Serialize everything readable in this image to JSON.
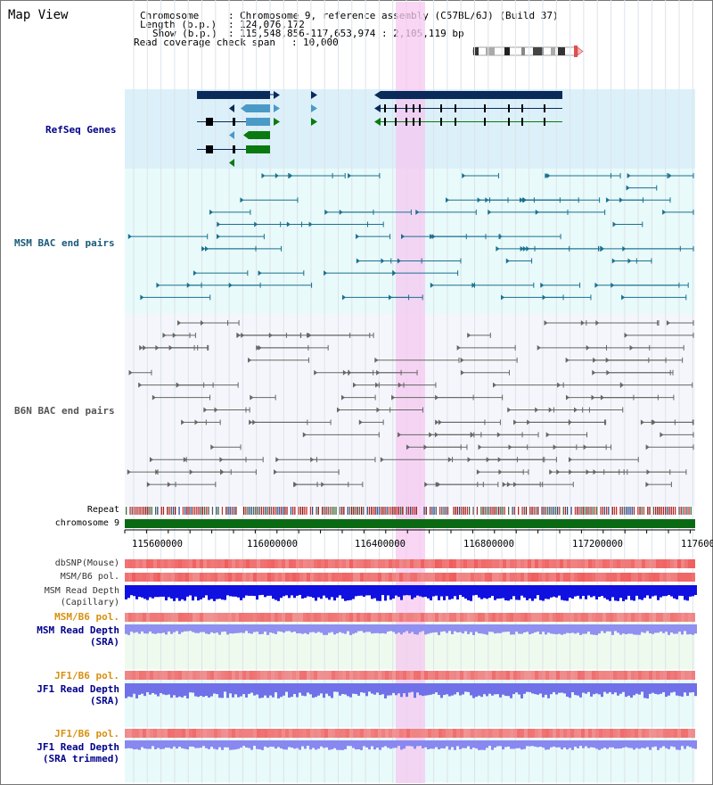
{
  "page": {
    "title": "Map View"
  },
  "header": {
    "chromosome_label": "Chromosome",
    "chromosome_value": "Chromosome 9, reference assembly (C57BL/6J) (Build 37)",
    "length_label": "Length (b.p.)",
    "length_value": "124,076,172",
    "show_label": "Show (b.p.)",
    "show_value": "115,548,856-117,653,974 : 2,105,119 bp",
    "coverage_label": "Read coverage check span",
    "coverage_value": "10,000"
  },
  "tracks": {
    "refseq": "RefSeq Genes",
    "msm_bac": "MSM BAC end pairs",
    "b6n_bac": "B6N BAC end pairs",
    "repeat": "Repeat",
    "chromosome": "chromosome 9",
    "dbsnp": "dbSNP(Mouse)",
    "msm_b6_pol": "MSM/B6 pol.",
    "msm_depth_cap_1": "MSM Read Depth",
    "msm_depth_cap_2": "(Capillary)",
    "msm_b6_pol_sra": "MSM/B6 pol.",
    "msm_depth_sra_1": "MSM Read Depth",
    "msm_depth_sra_2": "(SRA)",
    "jf1_pol_1": "JF1/B6 pol.",
    "jf1_depth_1": "JF1 Read Depth",
    "jf1_depth_1b": "(SRA)",
    "jf1_pol_2": "JF1/B6 pol.",
    "jf1_depth_2": "JF1 Read Depth",
    "jf1_depth_2b": "(SRA trimmed)"
  },
  "axis": {
    "ticks": [
      "115600000",
      "116000000",
      "116400000",
      "116800000",
      "117200000",
      "117600"
    ]
  },
  "colors": {
    "refseq_bg": "#dcf0fa",
    "msm_bg": "#e8fafa",
    "b6n_bg": "#f4f6fb",
    "highlight": "#f5c8f0",
    "gene_dark": "#0a2a5a",
    "gene_mid": "#4a9ac8",
    "gene_green": "#0a7a10",
    "msm_pair": "#1a7090",
    "b6n_pair": "#666666",
    "chromosome_bar": "#0a6a14",
    "label_blue": "#00008b",
    "label_orange": "#d89010",
    "label_teal": "#1a5a7a"
  }
}
